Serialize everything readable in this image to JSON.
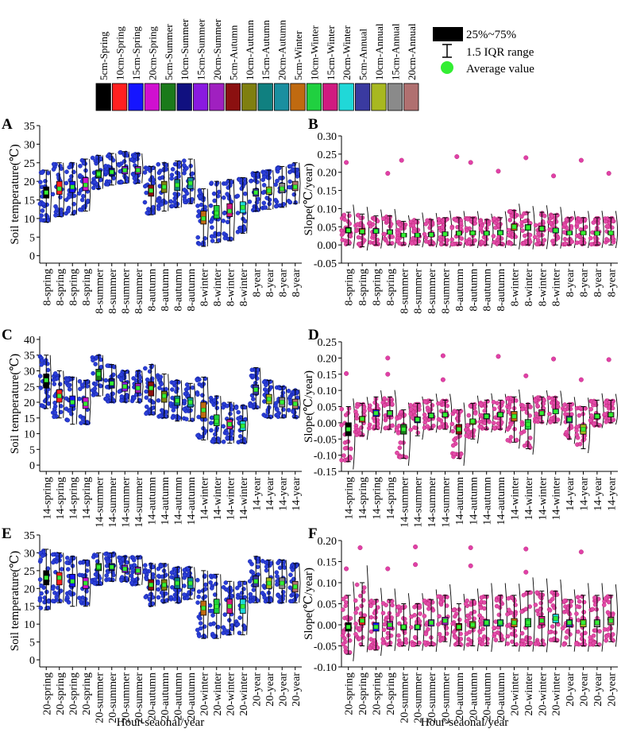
{
  "figure": {
    "xlabel_left": "Hour-seaonal/year",
    "xlabel_right": "Hour-seaonal/year",
    "temp_ylabel": "Soil temperature(℃)",
    "slope_ylabel": "Slope(℃/year)"
  },
  "legend": {
    "items": [
      {
        "label": "5cm-Spring",
        "color": "#000000"
      },
      {
        "label": "10cm-Spring",
        "color": "#ff2020"
      },
      {
        "label": "15cm-Spring",
        "color": "#1515ff"
      },
      {
        "label": "20cm-Spring",
        "color": "#d010d0"
      },
      {
        "label": "5cm-Summer",
        "color": "#1a7a1a"
      },
      {
        "label": "10cm-Summer",
        "color": "#101080"
      },
      {
        "label": "15cm-Summer",
        "color": "#8a1ae0"
      },
      {
        "label": "20cm-Summer",
        "color": "#a020c0"
      },
      {
        "label": "5cm-Autumn",
        "color": "#8b1010"
      },
      {
        "label": "10cm-Autumn",
        "color": "#7f7f10"
      },
      {
        "label": "15cm-Autumn",
        "color": "#108080"
      },
      {
        "label": "20cm-Autumn",
        "color": "#1a8fa0"
      },
      {
        "label": "5cm-Winter",
        "color": "#c06a10"
      },
      {
        "label": "10cm-Winter",
        "color": "#20d040"
      },
      {
        "label": "15cm-Winter",
        "color": "#d01a80"
      },
      {
        "label": "20cm-Winter",
        "color": "#20d8d8"
      },
      {
        "label": "5cm-Annual",
        "color": "#3a3aa0"
      },
      {
        "label": "10cm-Annual",
        "color": "#a8b820"
      },
      {
        "label": "15cm-Annual",
        "color": "#8a8a8a"
      },
      {
        "label": "20cm-Annual",
        "color": "#b07070"
      }
    ],
    "key": {
      "box_label": "25%~75%",
      "whisker_label": "1.5 IQR range",
      "mean_label": "Average value"
    }
  },
  "chart_data": [
    {
      "panel": "A",
      "type": "box",
      "hour": "8",
      "ylabel": "Soil temperature(℃)",
      "xlabel": "",
      "ylim": [
        -2,
        35
      ],
      "yticks": [
        0,
        5,
        10,
        15,
        20,
        25,
        30,
        35
      ],
      "tick_decimals": 0,
      "points": "blue",
      "categories": [
        "8-spring",
        "8-spring",
        "8-spring",
        "8-spring",
        "8-summer",
        "8-summer",
        "8-summer",
        "8-summer",
        "8-autumn",
        "8-autumn",
        "8-autumn",
        "8-autumn",
        "8-winter",
        "8-winter",
        "8-winter",
        "8-winter",
        "8-year",
        "8-year",
        "8-year",
        "8-year"
      ],
      "median": [
        17,
        18,
        18.5,
        19,
        22,
        22.5,
        23,
        23,
        17.5,
        18.5,
        19,
        19.5,
        10,
        11.5,
        12,
        13,
        17,
        17.5,
        18,
        18.5
      ],
      "q1": [
        15.5,
        16.5,
        17,
        17.5,
        21,
        21.5,
        22,
        22,
        16,
        17,
        17.5,
        18,
        8.5,
        10,
        10.5,
        11.5,
        16,
        16.5,
        17,
        17.5
      ],
      "q3": [
        18.5,
        20,
        20,
        21,
        23,
        23.5,
        24,
        24,
        19,
        20,
        20.5,
        21,
        12,
        13.5,
        14,
        14.5,
        18,
        18.5,
        19.5,
        20
      ],
      "wlo": [
        9,
        10.5,
        11,
        12,
        18,
        19,
        19.5,
        19.5,
        11,
        12,
        13,
        14,
        2.5,
        3.5,
        4,
        6,
        12,
        12.5,
        13,
        14
      ],
      "whi": [
        23,
        25,
        25,
        26,
        27,
        27.5,
        28,
        27.5,
        24,
        25,
        25.5,
        26,
        18,
        20,
        20.5,
        21,
        22.5,
        23,
        24,
        25
      ]
    },
    {
      "panel": "B",
      "type": "box",
      "hour": "8",
      "ylabel": "Slope(℃/year)",
      "xlabel": "",
      "ylim": [
        -0.05,
        0.3
      ],
      "yticks": [
        -0.05,
        0,
        0.05,
        0.1,
        0.15,
        0.2,
        0.25,
        0.3
      ],
      "tick_decimals": 2,
      "points": "pink",
      "categories": [
        "8-spring",
        "8-spring",
        "8-spring",
        "8-spring",
        "8-summer",
        "8-summer",
        "8-summer",
        "8-summer",
        "8-autumn",
        "8-autumn",
        "8-autumn",
        "8-autumn",
        "8-winter",
        "8-winter",
        "8-winter",
        "8-winter",
        "8-year",
        "8-year",
        "8-year",
        "8-year"
      ],
      "median": [
        0.04,
        0.037,
        0.038,
        0.035,
        0.027,
        0.027,
        0.028,
        0.03,
        0.032,
        0.033,
        0.032,
        0.033,
        0.05,
        0.048,
        0.045,
        0.04,
        0.033,
        0.033,
        0.032,
        0.033
      ],
      "q1": [
        0.033,
        0.03,
        0.032,
        0.03,
        0.022,
        0.022,
        0.023,
        0.025,
        0.027,
        0.028,
        0.027,
        0.028,
        0.04,
        0.04,
        0.038,
        0.033,
        0.028,
        0.028,
        0.027,
        0.028
      ],
      "q3": [
        0.048,
        0.045,
        0.045,
        0.042,
        0.032,
        0.032,
        0.034,
        0.036,
        0.038,
        0.039,
        0.038,
        0.04,
        0.058,
        0.056,
        0.052,
        0.046,
        0.038,
        0.038,
        0.037,
        0.038
      ],
      "wlo": [
        0.0,
        -0.005,
        0.0,
        0.0,
        0.0,
        0.0,
        0.0,
        0.0,
        0.0,
        0.0,
        0.0,
        0.0,
        0.0,
        0.0,
        0.0,
        0.0,
        0.0,
        0.0,
        0.0,
        0.0
      ],
      "whi": [
        0.09,
        0.085,
        0.08,
        0.08,
        0.065,
        0.07,
        0.07,
        0.075,
        0.075,
        0.075,
        0.07,
        0.075,
        0.095,
        0.09,
        0.09,
        0.085,
        0.075,
        0.075,
        0.075,
        0.075
      ],
      "outliers": [
        [
          0,
          0.227
        ],
        [
          3,
          0.197
        ],
        [
          4,
          0.233
        ],
        [
          8,
          0.243
        ],
        [
          9,
          0.227
        ],
        [
          11,
          0.203
        ],
        [
          13,
          0.24
        ],
        [
          15,
          0.19
        ],
        [
          17,
          0.233
        ],
        [
          19,
          0.197
        ]
      ]
    },
    {
      "panel": "C",
      "type": "box",
      "hour": "14",
      "ylabel": "Soil temperature(℃)",
      "xlabel": "",
      "ylim": [
        -2,
        41
      ],
      "yticks": [
        0,
        5,
        10,
        15,
        20,
        25,
        30,
        35,
        40
      ],
      "tick_decimals": 0,
      "points": "blue",
      "categories": [
        "14-spring",
        "14-spring",
        "14-spring",
        "14-spring",
        "14-summer",
        "14-summer",
        "14-summer",
        "14-summer",
        "14-autumn",
        "14-autumn",
        "14-autumn",
        "14-autumn",
        "14-winter",
        "14-winter",
        "14-winter",
        "14-winter",
        "14-year",
        "14-year",
        "14-year",
        "14-year"
      ],
      "median": [
        27,
        22,
        20,
        19.5,
        29,
        26,
        25,
        24.5,
        24.5,
        22,
        20.5,
        20,
        17.5,
        14,
        13,
        12.5,
        24,
        21,
        20,
        19.5
      ],
      "q1": [
        24.5,
        20,
        18.5,
        18,
        27,
        24.5,
        23.5,
        23,
        22,
        20,
        19,
        18.5,
        15,
        12.5,
        11.5,
        11,
        22.5,
        19.5,
        18.5,
        18
      ],
      "q3": [
        29,
        24,
        22,
        21.5,
        30.5,
        27.5,
        26.5,
        26,
        26.5,
        23.5,
        22,
        21.5,
        20,
        16,
        14.5,
        14,
        25.5,
        22.5,
        21.5,
        21
      ],
      "wlo": [
        18,
        15,
        13,
        13,
        22,
        20,
        20,
        20,
        16,
        15,
        14,
        14,
        8,
        7,
        7,
        7,
        18,
        15,
        15,
        15
      ],
      "whi": [
        35,
        30,
        28,
        27,
        35,
        32,
        30,
        30,
        32,
        29,
        27,
        26,
        28,
        22,
        20,
        19,
        31,
        27,
        25,
        24
      ]
    },
    {
      "panel": "D",
      "type": "box",
      "hour": "14",
      "ylabel": "Slope(℃/year)",
      "xlabel": "",
      "ylim": [
        -0.15,
        0.25
      ],
      "yticks": [
        -0.15,
        -0.1,
        -0.05,
        0,
        0.05,
        0.1,
        0.15,
        0.2,
        0.25
      ],
      "tick_decimals": 2,
      "points": "pink",
      "categories": [
        "14-spring",
        "14-spring",
        "14-spring",
        "14-spring",
        "14-summer",
        "14-summer",
        "14-summer",
        "14-summer",
        "14-autumn",
        "14-autumn",
        "14-autumn",
        "14-autumn",
        "14-winter",
        "14-winter",
        "14-winter",
        "14-winter",
        "14-year",
        "14-year",
        "14-year",
        "14-year"
      ],
      "median": [
        -0.02,
        0.012,
        0.03,
        0.03,
        -0.02,
        0.01,
        0.022,
        0.025,
        -0.02,
        0.005,
        0.02,
        0.025,
        0.02,
        -0.005,
        0.03,
        0.035,
        0.01,
        -0.02,
        0.02,
        0.025
      ],
      "q1": [
        -0.04,
        0.002,
        0.02,
        0.02,
        -0.035,
        0.0,
        0.015,
        0.018,
        -0.035,
        -0.005,
        0.012,
        0.018,
        0.005,
        -0.02,
        0.022,
        0.028,
        0.0,
        -0.035,
        0.012,
        0.018
      ],
      "q3": [
        0.0,
        0.02,
        0.04,
        0.038,
        -0.005,
        0.018,
        0.03,
        0.032,
        -0.005,
        0.012,
        0.028,
        0.032,
        0.035,
        0.01,
        0.04,
        0.042,
        0.02,
        -0.005,
        0.028,
        0.032
      ],
      "wlo": [
        -0.12,
        -0.04,
        -0.02,
        -0.02,
        -0.11,
        -0.04,
        -0.02,
        -0.02,
        -0.11,
        -0.05,
        -0.02,
        -0.02,
        -0.06,
        -0.08,
        0.0,
        0.0,
        -0.05,
        -0.08,
        -0.01,
        0.0
      ],
      "whi": [
        0.05,
        0.06,
        0.08,
        0.08,
        0.04,
        0.06,
        0.07,
        0.07,
        0.04,
        0.06,
        0.07,
        0.07,
        0.08,
        0.06,
        0.08,
        0.08,
        0.06,
        0.05,
        0.07,
        0.07
      ],
      "outliers": [
        [
          0,
          0.152
        ],
        [
          3,
          0.2
        ],
        [
          3,
          0.15
        ],
        [
          7,
          0.207
        ],
        [
          7,
          0.133
        ],
        [
          11,
          0.205
        ],
        [
          13,
          0.145
        ],
        [
          15,
          0.197
        ],
        [
          17,
          0.133
        ],
        [
          19,
          0.195
        ]
      ]
    },
    {
      "panel": "E",
      "type": "box",
      "hour": "20",
      "ylabel": "Soil temperature(℃)",
      "xlabel": "Hour-seaonal/year",
      "ylim": [
        -2,
        35
      ],
      "yticks": [
        0,
        5,
        10,
        15,
        20,
        25,
        30,
        35
      ],
      "tick_decimals": 0,
      "points": "blue",
      "categories": [
        "20-spring",
        "20-spring",
        "20-spring",
        "20-spring",
        "20-summer",
        "20-summer",
        "20-summer",
        "20-summer",
        "20-autumn",
        "20-autumn",
        "20-autumn",
        "20-autumn",
        "20-winter",
        "20-winter",
        "20-winter",
        "20-winter",
        "20-year",
        "20-year",
        "20-year",
        "20-year"
      ],
      "median": [
        23,
        23,
        22,
        21.5,
        26,
        26,
        25.5,
        25,
        21,
        21,
        21.5,
        21.5,
        14.5,
        15,
        15,
        15,
        22,
        21.5,
        21.5,
        20.5
      ],
      "q1": [
        21,
        21,
        20.5,
        20,
        25,
        25,
        24.5,
        24,
        19.5,
        19.5,
        20,
        20,
        12.5,
        13,
        13,
        13,
        20.5,
        20,
        20,
        19
      ],
      "q3": [
        25,
        24.5,
        24,
        23,
        27,
        27,
        26.5,
        26,
        22.5,
        22.5,
        23,
        23,
        16.5,
        17,
        17,
        17,
        23.5,
        23,
        23,
        22
      ],
      "wlo": [
        14,
        16,
        15,
        15,
        21,
        22,
        22,
        21,
        15,
        16,
        16,
        17,
        6,
        6,
        7,
        7,
        16,
        16,
        16,
        16
      ],
      "whi": [
        31,
        30,
        29,
        28,
        30,
        30,
        29,
        29,
        27,
        27,
        26,
        26,
        25,
        24,
        22,
        22,
        29,
        28,
        28,
        27
      ]
    },
    {
      "panel": "F",
      "type": "box",
      "hour": "20",
      "ylabel": "Slope(℃/year)",
      "xlabel": "Hour-seaonal/year",
      "ylim": [
        -0.1,
        0.2
      ],
      "yticks": [
        -0.1,
        -0.05,
        0,
        0.05,
        0.1,
        0.15,
        0.2
      ],
      "tick_decimals": 2,
      "points": "pink",
      "categories": [
        "20-spring",
        "20-spring",
        "20-spring",
        "20-spring",
        "20-summer",
        "20-summer",
        "20-summer",
        "20-summer",
        "20-autumn",
        "20-autumn",
        "20-autumn",
        "20-autumn",
        "20-winter",
        "20-winter",
        "20-winter",
        "20-winter",
        "20-year",
        "20-year",
        "20-year",
        "20-year"
      ],
      "median": [
        -0.005,
        0.01,
        -0.005,
        0.0,
        -0.005,
        -0.005,
        0.005,
        0.01,
        -0.005,
        0.0,
        0.005,
        0.005,
        0.005,
        0.005,
        0.01,
        0.015,
        0.005,
        0.005,
        0.005,
        0.01
      ],
      "q1": [
        -0.015,
        0.0,
        -0.015,
        -0.01,
        -0.012,
        -0.012,
        -0.003,
        0.0,
        -0.013,
        -0.008,
        -0.003,
        -0.003,
        -0.005,
        -0.005,
        0.0,
        0.005,
        -0.005,
        -0.005,
        -0.005,
        0.0
      ],
      "q3": [
        0.005,
        0.018,
        0.005,
        0.008,
        0.0,
        0.0,
        0.012,
        0.018,
        0.003,
        0.008,
        0.012,
        0.012,
        0.015,
        0.015,
        0.02,
        0.025,
        0.012,
        0.012,
        0.012,
        0.018
      ],
      "wlo": [
        -0.07,
        -0.05,
        -0.06,
        -0.05,
        -0.05,
        -0.05,
        -0.05,
        -0.04,
        -0.05,
        -0.05,
        -0.05,
        -0.04,
        -0.05,
        -0.05,
        -0.05,
        -0.04,
        -0.05,
        -0.05,
        -0.05,
        -0.04
      ],
      "whi": [
        0.07,
        0.1,
        0.06,
        0.06,
        0.05,
        0.05,
        0.06,
        0.07,
        0.05,
        0.06,
        0.07,
        0.07,
        0.07,
        0.08,
        0.08,
        0.08,
        0.06,
        0.07,
        0.07,
        0.07
      ],
      "outliers": [
        [
          0,
          0.133
        ],
        [
          1,
          0.183
        ],
        [
          3,
          0.133
        ],
        [
          5,
          0.185
        ],
        [
          5,
          0.143
        ],
        [
          9,
          0.183
        ],
        [
          9,
          0.14
        ],
        [
          13,
          0.18
        ],
        [
          13,
          0.125
        ],
        [
          17,
          0.173
        ]
      ]
    }
  ]
}
